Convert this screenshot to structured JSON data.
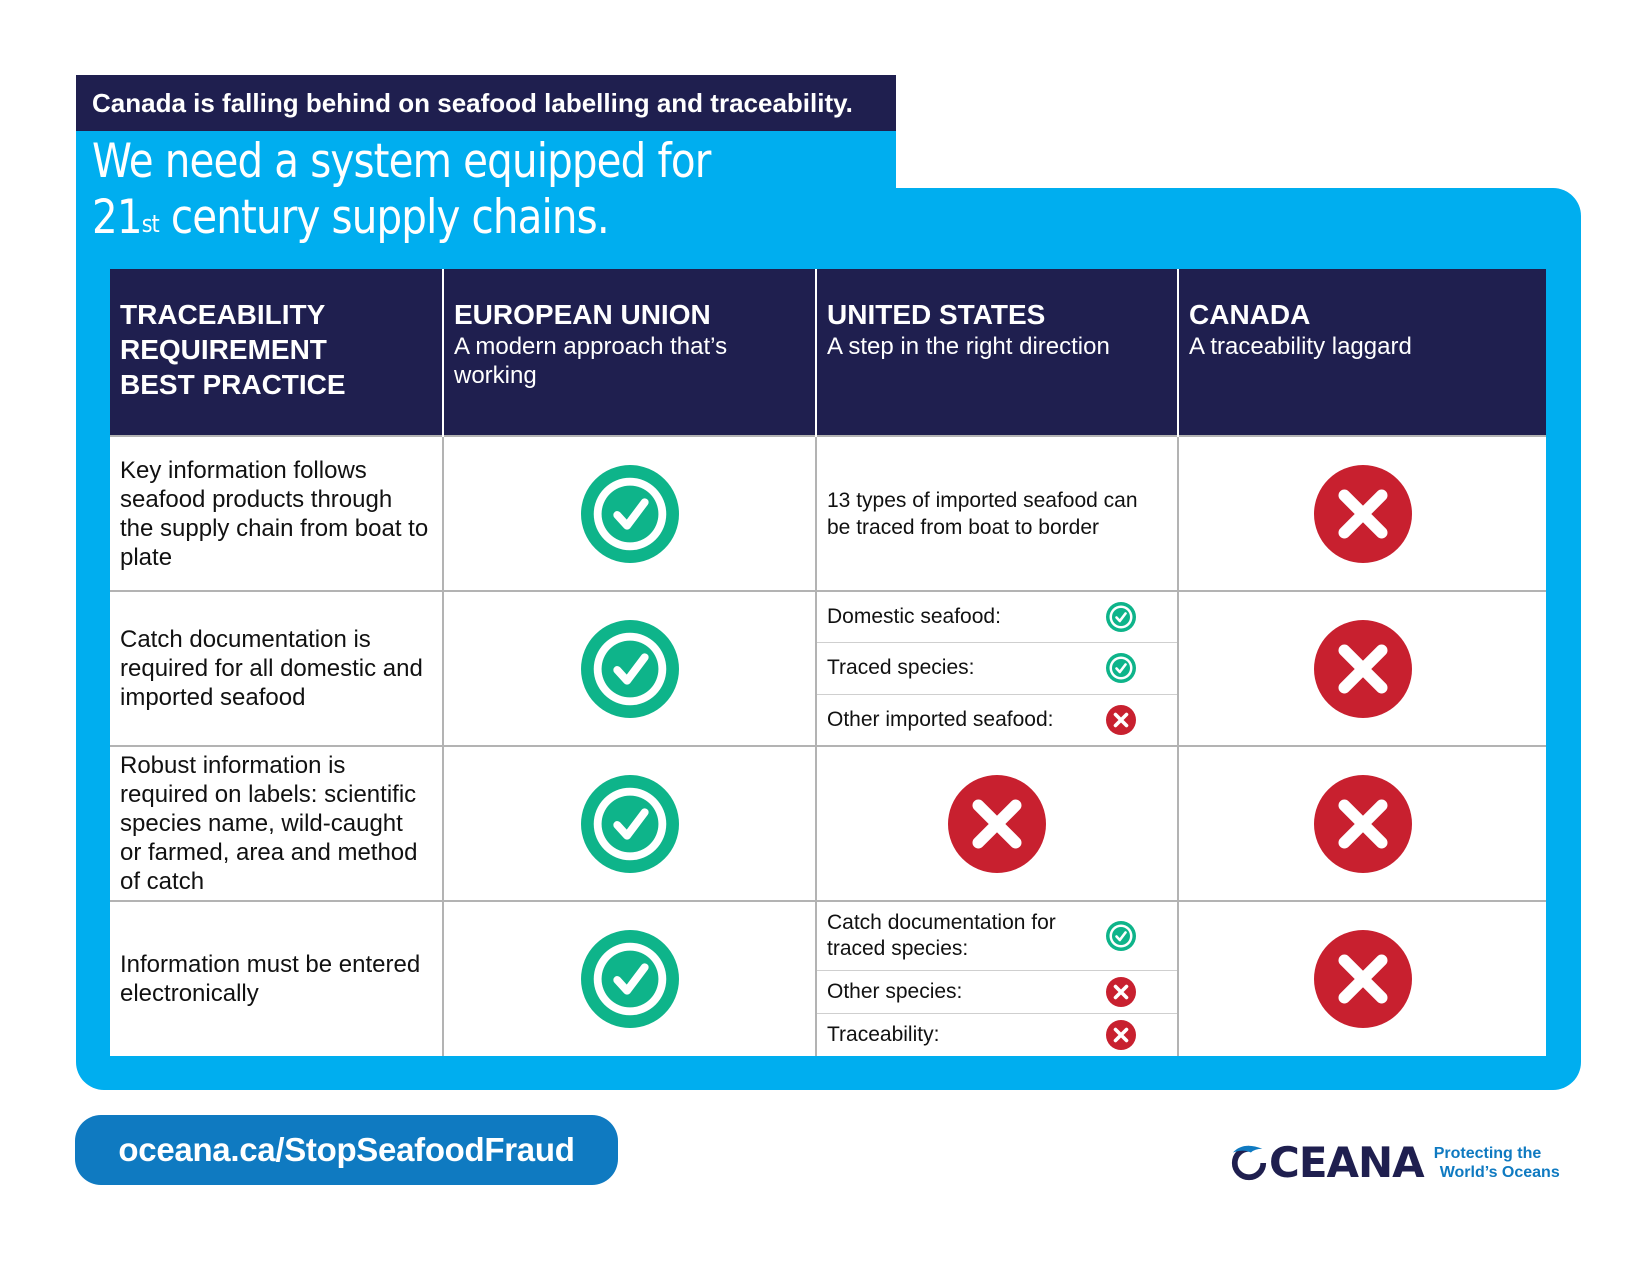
{
  "header": {
    "tagline": "Canada is falling behind on seafood labelling and traceability.",
    "headline_line1": "We need a system equipped for",
    "headline_num": "21",
    "headline_sup": "st",
    "headline_rest": " century supply chains."
  },
  "table": {
    "columns": [
      {
        "title": "TRACEABILITY\nREQUIREMENT\nBEST PRACTICE",
        "subtitle": ""
      },
      {
        "title": "EUROPEAN UNION",
        "subtitle": "A modern approach that’s working"
      },
      {
        "title": "UNITED STATES",
        "subtitle": "A step in the right direction"
      },
      {
        "title": "CANADA",
        "subtitle": "A traceability laggard"
      }
    ],
    "rows": [
      {
        "requirement": "Key information follows seafood products through the supply chain from boat to plate",
        "eu": "check",
        "us_text": "13 types of imported seafood can be traced from boat to border",
        "canada": "cross"
      },
      {
        "requirement": "Catch documentation is required for all domestic and imported seafood",
        "eu": "check",
        "us_items": [
          {
            "label": "Domestic seafood:",
            "status": "check"
          },
          {
            "label": "Traced species:",
            "status": "check"
          },
          {
            "label": "Other imported seafood:",
            "status": "cross"
          }
        ],
        "canada": "cross"
      },
      {
        "requirement": "Robust information is required on labels: scientific species name, wild-caught or farmed, area and method of catch",
        "eu": "check",
        "us": "cross",
        "canada": "cross"
      },
      {
        "requirement": "Information must be entered electronically",
        "eu": "check",
        "us_items": [
          {
            "label": "Catch documentation for traced species:",
            "status": "check"
          },
          {
            "label": "Other species:",
            "status": "cross"
          },
          {
            "label": "Traceability:",
            "status": "cross"
          }
        ],
        "canada": "cross"
      }
    ]
  },
  "footer": {
    "url": "oceana.ca/StopSeafoodFraud",
    "logo_text": "CEANA",
    "logo_tagline_1": "Protecting the",
    "logo_tagline_2": "World’s Oceans"
  },
  "colors": {
    "navy": "#1f1f4f",
    "sky_blue": "#00aeef",
    "link_blue": "#0f7ac1",
    "check_green": "#0eb48a",
    "cross_red": "#c8202f"
  },
  "icons": {
    "check": "check-circle-icon",
    "cross": "cross-circle-icon"
  }
}
